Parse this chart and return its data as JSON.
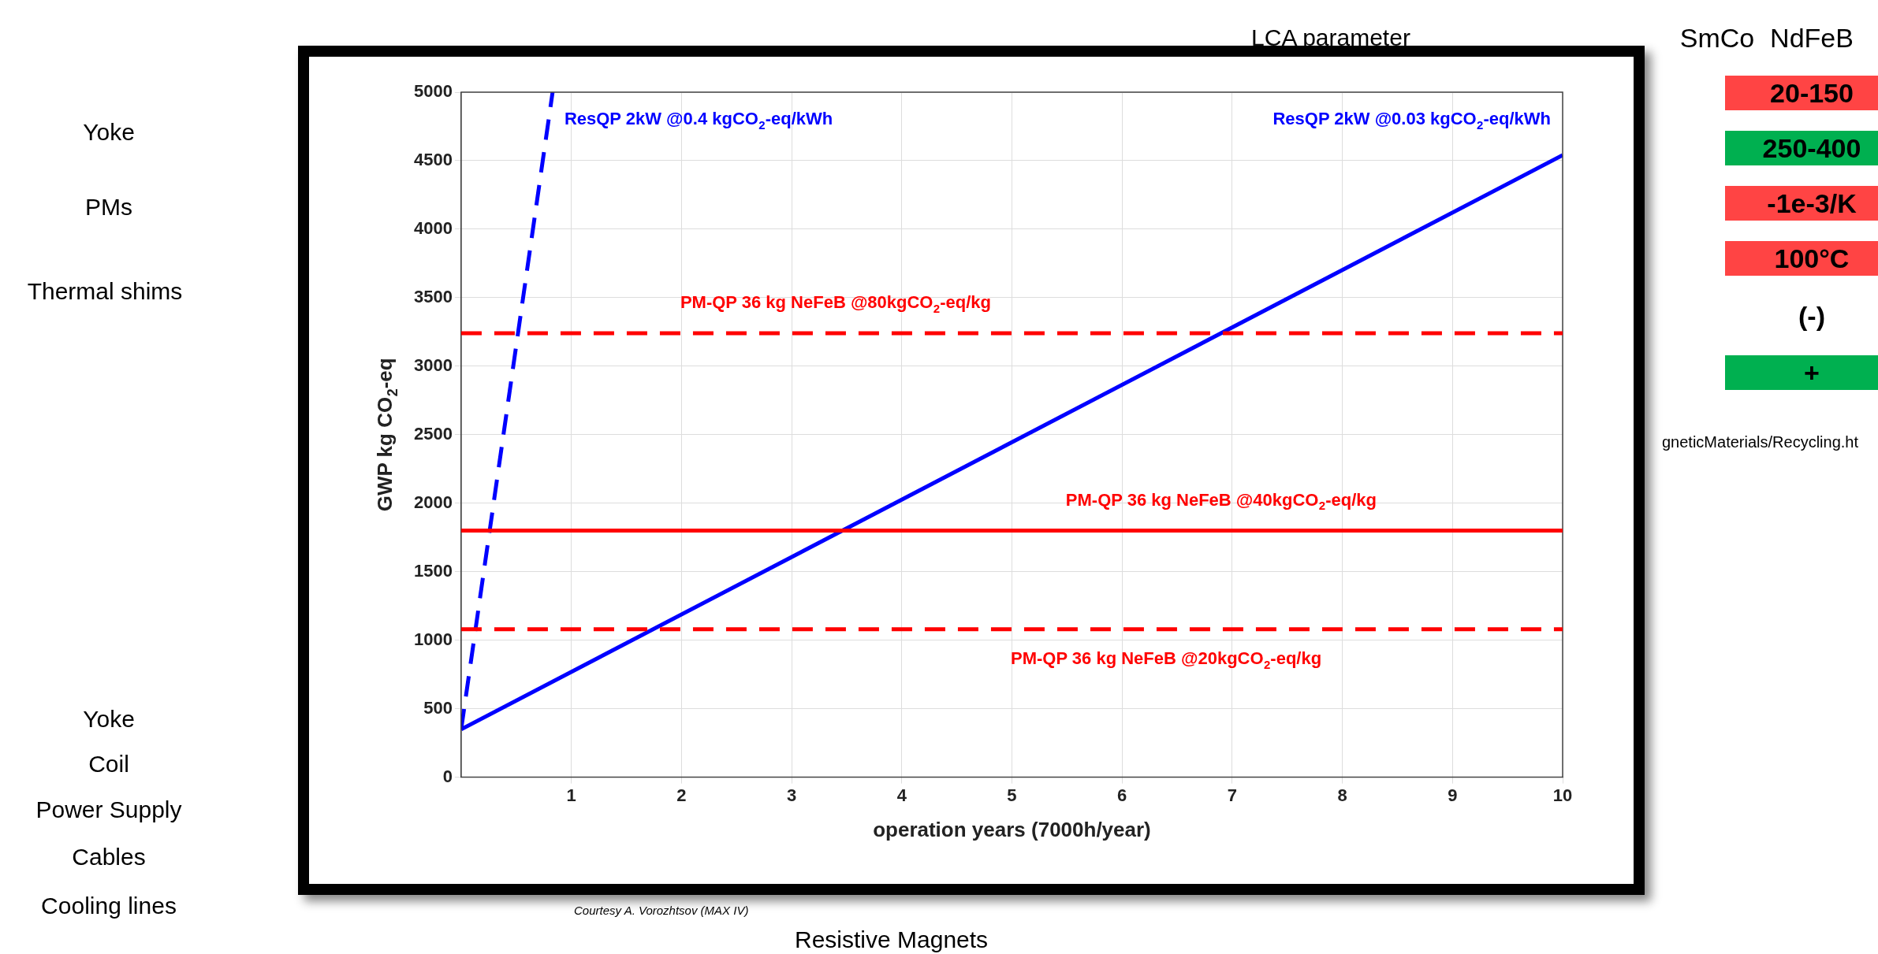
{
  "chart_data": {
    "type": "line",
    "xlabel": "operation years (7000h/year)",
    "ylabel": "GWP kg CO$_{2}$-eq",
    "xlim": [
      0,
      10
    ],
    "xticks": [
      1,
      2,
      3,
      4,
      5,
      6,
      7,
      8,
      9,
      10
    ],
    "ylim": [
      0,
      5000
    ],
    "yticks": [
      0,
      500,
      1000,
      1500,
      2000,
      2500,
      3000,
      3500,
      4000,
      4500,
      5000
    ],
    "grid": true,
    "legend": false,
    "marker": "none",
    "series": [
      {
        "name": "ResQP 2kW @0.4 kgCO$_{2}$-eq/kWh",
        "color": "#0000ff",
        "line_style": "dashed",
        "x": [
          0,
          0.83
        ],
        "values": [
          350,
          5000
        ]
      },
      {
        "name": "ResQP 2kW @0.03 kgCO$_{2}$-eq/kWh",
        "color": "#0000ff",
        "line_style": "solid",
        "x": [
          0,
          10
        ],
        "values": [
          350,
          4540
        ]
      }
    ],
    "ref_lines": [
      {
        "axis": "y",
        "value": 3240,
        "label": "PM-QP 36 kg NeFeB @80kgCO$_{2}$-eq/kg",
        "color": "#ff0000",
        "line_style": "dashed"
      },
      {
        "axis": "y",
        "value": 1800,
        "label": "PM-QP 36 kg NeFeB @40kgCO$_{2}$-eq/kg",
        "color": "#ff0000",
        "line_style": "solid"
      },
      {
        "axis": "y",
        "value": 1080,
        "label": "PM-QP 36 kg NeFeB @20kgCO$_{2}$-eq/kg",
        "color": "#ff0000",
        "line_style": "dashed"
      }
    ],
    "annotations": [
      "Yoke",
      "PMs",
      "Thermal shims",
      "Yoke",
      "Coil",
      "Power Supply",
      "Cables",
      "Cooling lines",
      "LCA parameter",
      "SmCo",
      "NdFeB",
      "20-150",
      "250-400",
      "-1e-3/K",
      "100°C",
      "(-)",
      "+",
      "gneticMaterials/Recycling.ht",
      "Courtesy A. Vorozhtsov (MAX IV)",
      "Resistive Magnets"
    ]
  }
}
